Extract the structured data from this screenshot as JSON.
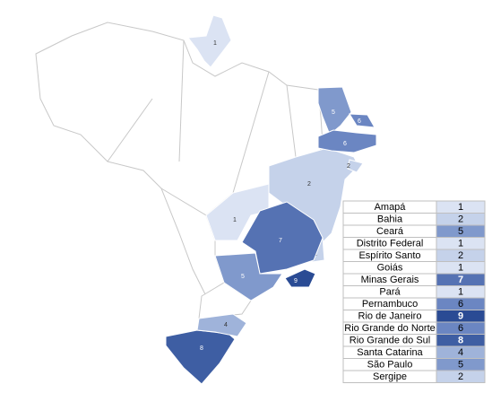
{
  "regions": [
    {
      "name": "Amapá",
      "value": 1,
      "color": "#dbe3f3"
    },
    {
      "name": "Bahia",
      "value": 2,
      "color": "#c5d2ea"
    },
    {
      "name": "Ceará",
      "value": 5,
      "color": "#8099cc"
    },
    {
      "name": "Distrito Federal",
      "value": 1,
      "color": "#dbe3f3"
    },
    {
      "name": "Espírito Santo",
      "value": 2,
      "color": "#c5d2ea"
    },
    {
      "name": "Goiás",
      "value": 1,
      "color": "#dbe3f3"
    },
    {
      "name": "Minas Gerais",
      "value": 7,
      "color": "#5572b3"
    },
    {
      "name": "Pará",
      "value": 1,
      "color": "#dbe3f3"
    },
    {
      "name": "Pernambuco",
      "value": 6,
      "color": "#6b86c2"
    },
    {
      "name": "Rio de Janeiro",
      "value": 9,
      "color": "#2a4b94"
    },
    {
      "name": "Rio Grande do Norte",
      "value": 6,
      "color": "#6b86c2"
    },
    {
      "name": "Rio Grande do Sul",
      "value": 8,
      "color": "#3e5ea3"
    },
    {
      "name": "Santa Catarina",
      "value": 4,
      "color": "#9fb3da"
    },
    {
      "name": "São Paulo",
      "value": 5,
      "color": "#8099cc"
    },
    {
      "name": "Sergipe",
      "value": 2,
      "color": "#c5d2ea"
    }
  ]
}
